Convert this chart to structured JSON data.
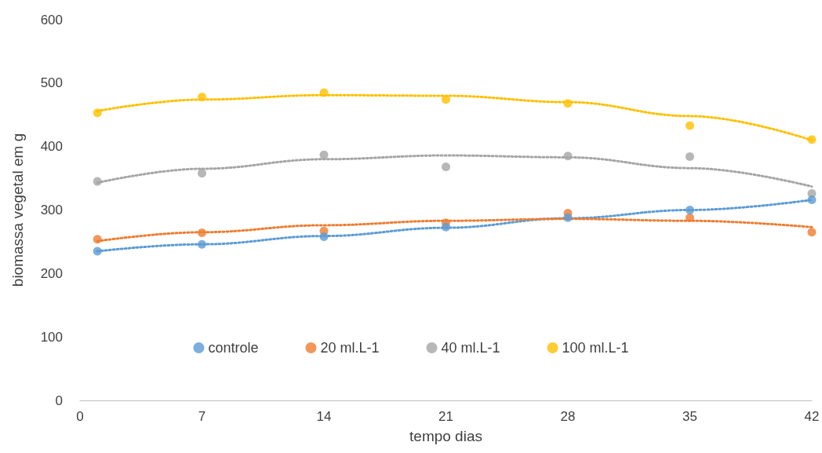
{
  "chart_data": {
    "type": "scatter",
    "xlabel": "tempo dias",
    "ylabel": "biomassa vegetal em g",
    "x": [
      1,
      7,
      14,
      21,
      28,
      35,
      42
    ],
    "series": [
      {
        "name": "controle",
        "color": "#5b9bd5",
        "values": [
          235,
          246,
          258,
          273,
          288,
          300,
          316
        ]
      },
      {
        "name": "20 ml.L-1",
        "color": "#ed7d31",
        "values": [
          254,
          264,
          267,
          280,
          295,
          288,
          265
        ]
      },
      {
        "name": "40 ml.L-1",
        "color": "#a5a5a5",
        "values": [
          345,
          358,
          387,
          368,
          385,
          384,
          326
        ]
      },
      {
        "name": "100 ml.L-1",
        "color": "#ffc000",
        "values": [
          453,
          478,
          485,
          474,
          468,
          433,
          411
        ]
      },
      {
        "type": "line",
        "color": "#5b9bd5",
        "line_style": "dotted",
        "marker": "none",
        "x": [
          1,
          7,
          14,
          21,
          28,
          35,
          42
        ],
        "values": [
          235,
          246,
          259,
          272,
          287,
          300,
          316
        ]
      },
      {
        "type": "line",
        "color": "#ed7d31",
        "line_style": "dotted",
        "marker": "none",
        "x": [
          1,
          7,
          14,
          21,
          28,
          35,
          42
        ],
        "values": [
          251,
          265,
          276,
          283,
          286,
          283,
          273
        ]
      },
      {
        "type": "line",
        "color": "#a5a5a5",
        "line_style": "dotted",
        "marker": "none",
        "x": [
          1,
          7,
          14,
          21,
          28,
          35,
          42
        ],
        "values": [
          343,
          365,
          380,
          386,
          383,
          366,
          337
        ]
      },
      {
        "type": "line",
        "color": "#ffc000",
        "line_style": "dotted",
        "marker": "none",
        "x": [
          1,
          7,
          14,
          21,
          28,
          35,
          42
        ],
        "values": [
          456,
          474,
          481,
          480,
          470,
          448,
          410
        ]
      }
    ],
    "xlim": [
      0,
      42
    ],
    "xticks": [
      0,
      7,
      14,
      21,
      28,
      35,
      42
    ],
    "ylim": [
      0,
      600
    ],
    "yticks": [
      0,
      100,
      200,
      300,
      400,
      500,
      600
    ],
    "grid": false,
    "legend": "bottom",
    "marker": "circle"
  }
}
